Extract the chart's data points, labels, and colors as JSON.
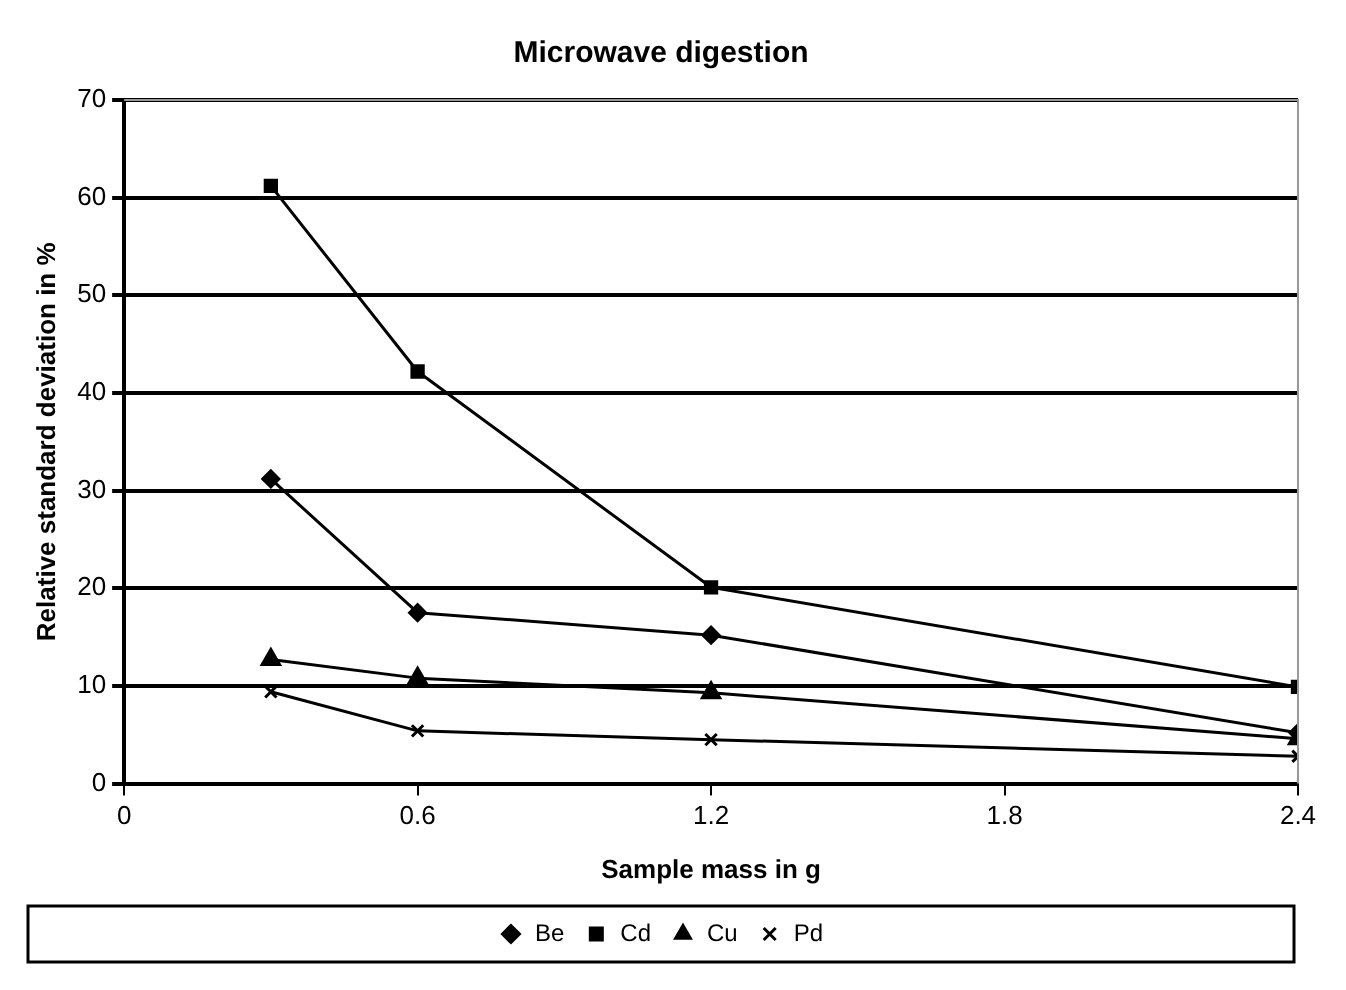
{
  "chart_data": {
    "type": "line",
    "title": "Microwave digestion",
    "xlabel": "Sample mass in g",
    "ylabel": "Relative standard deviation in %",
    "x": [
      0.3,
      0.6,
      1.2,
      2.4
    ],
    "series": [
      {
        "name": "Be",
        "color": "#000000",
        "marker": "diamond",
        "values": [
          31.2,
          17.5,
          15.2,
          5.2
        ]
      },
      {
        "name": "Cd",
        "color": "#000000",
        "marker": "square",
        "values": [
          61.2,
          42.2,
          20.1,
          9.9
        ]
      },
      {
        "name": "Cu",
        "color": "#000000",
        "marker": "triangle",
        "values": [
          12.7,
          10.8,
          9.3,
          4.6
        ]
      },
      {
        "name": "Pd",
        "color": "#000000",
        "marker": "cross",
        "values": [
          9.4,
          5.4,
          4.5,
          2.8
        ]
      }
    ],
    "xlim": [
      0,
      2.4
    ],
    "xticks": [
      0,
      0.6,
      1.2,
      1.8,
      2.4
    ],
    "ylim": [
      0,
      70
    ],
    "yticks": [
      0,
      10,
      20,
      30,
      40,
      50,
      60,
      70
    ],
    "grid": "y",
    "legend": "bottom",
    "line_style": "solid"
  }
}
